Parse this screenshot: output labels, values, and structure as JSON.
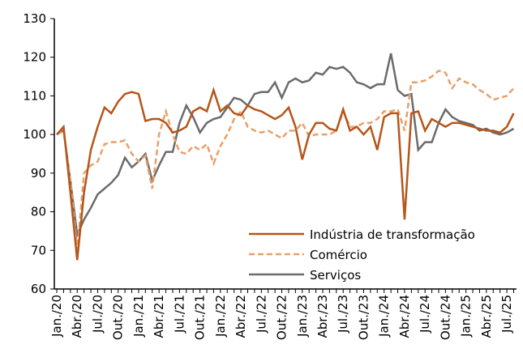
{
  "chart_data": {
    "type": "line",
    "categories": [
      "Jan./20",
      null,
      null,
      "Abr./20",
      null,
      null,
      "Jul./20",
      null,
      null,
      "Out./20",
      null,
      null,
      "Jan./21",
      null,
      null,
      "Abr./21",
      null,
      null,
      "Jul./21",
      null,
      null,
      "Out./21",
      null,
      null,
      "Jan./22",
      null,
      null,
      "Abr./22",
      null,
      null,
      "Jul./22",
      null,
      null,
      "Out./22",
      null,
      null,
      "Jan./23",
      null,
      null,
      "Abr./23",
      null,
      null,
      "Jul./23",
      null,
      null,
      "Out./23",
      null,
      null,
      "Jan./24",
      null,
      null,
      "Abr./24",
      null,
      null,
      "Jul./24",
      null,
      null,
      "Out./24",
      null,
      null,
      "Jan./25",
      null,
      null,
      "Abr./25",
      null,
      null,
      "Jul./25",
      null
    ],
    "series": [
      {
        "name": "Indústria de transformação",
        "color": "#b5561a",
        "dash": false,
        "values": [
          100,
          102,
          85,
          67.5,
          85,
          96,
          102,
          107,
          105.5,
          108.5,
          110.5,
          111,
          110.5,
          103.5,
          104,
          104,
          103,
          100.5,
          101,
          102,
          106,
          107,
          106,
          111.5,
          106,
          107.5,
          105.5,
          105,
          107.5,
          106.5,
          106,
          105,
          104,
          105,
          107,
          102,
          93.5,
          100,
          103,
          103,
          101.5,
          101,
          106.5,
          101,
          102,
          100,
          102,
          96,
          104.5,
          105.5,
          105.5,
          78,
          105.5,
          106,
          101,
          104,
          103,
          102,
          103,
          103,
          102.5,
          102,
          101.5,
          101,
          101,
          100.5,
          102,
          105.5
        ]
      },
      {
        "name": "Comércio",
        "color": "#e8a06a",
        "dash": true,
        "values": [
          100,
          101,
          88,
          70,
          90,
          92,
          93,
          97.5,
          98,
          98,
          98.5,
          95,
          93,
          94.5,
          86,
          100,
          106,
          100,
          95.5,
          95,
          97,
          96,
          97.5,
          92.5,
          97,
          100,
          104,
          106,
          102,
          101,
          100.5,
          101,
          100,
          99,
          101,
          101,
          103,
          99.5,
          100,
          100,
          100,
          101,
          106,
          102,
          102,
          103,
          103,
          104,
          106,
          106,
          106.5,
          101,
          113.5,
          113.5,
          114,
          115,
          116.5,
          116,
          112,
          114.5,
          113.5,
          113,
          111.5,
          110.5,
          109,
          109.5,
          110,
          112
        ]
      },
      {
        "name": "Serviços",
        "color": "#6b6b6b",
        "dash": false,
        "values": [
          100,
          101,
          88,
          74,
          78,
          81,
          84.5,
          86,
          87.5,
          89.5,
          94,
          91.5,
          93,
          95,
          88,
          92,
          95.5,
          95.5,
          103,
          107.5,
          104.5,
          100.5,
          103,
          104,
          104.5,
          107,
          109.5,
          109,
          107.5,
          110.5,
          111,
          111,
          113.5,
          109.5,
          113.5,
          114.5,
          113.5,
          114,
          116,
          115.5,
          117.5,
          117,
          117.5,
          116,
          113.5,
          113,
          112,
          113,
          113,
          121,
          111.5,
          110,
          110.5,
          96,
          98,
          98,
          103,
          106.5,
          104.5,
          103.5,
          103,
          102.5,
          101,
          101.5,
          100.5,
          100,
          100.5,
          101.5
        ]
      }
    ],
    "ylim": [
      60,
      130
    ],
    "yticks": [
      60,
      70,
      80,
      90,
      100,
      110,
      120,
      130
    ],
    "grid": false
  }
}
